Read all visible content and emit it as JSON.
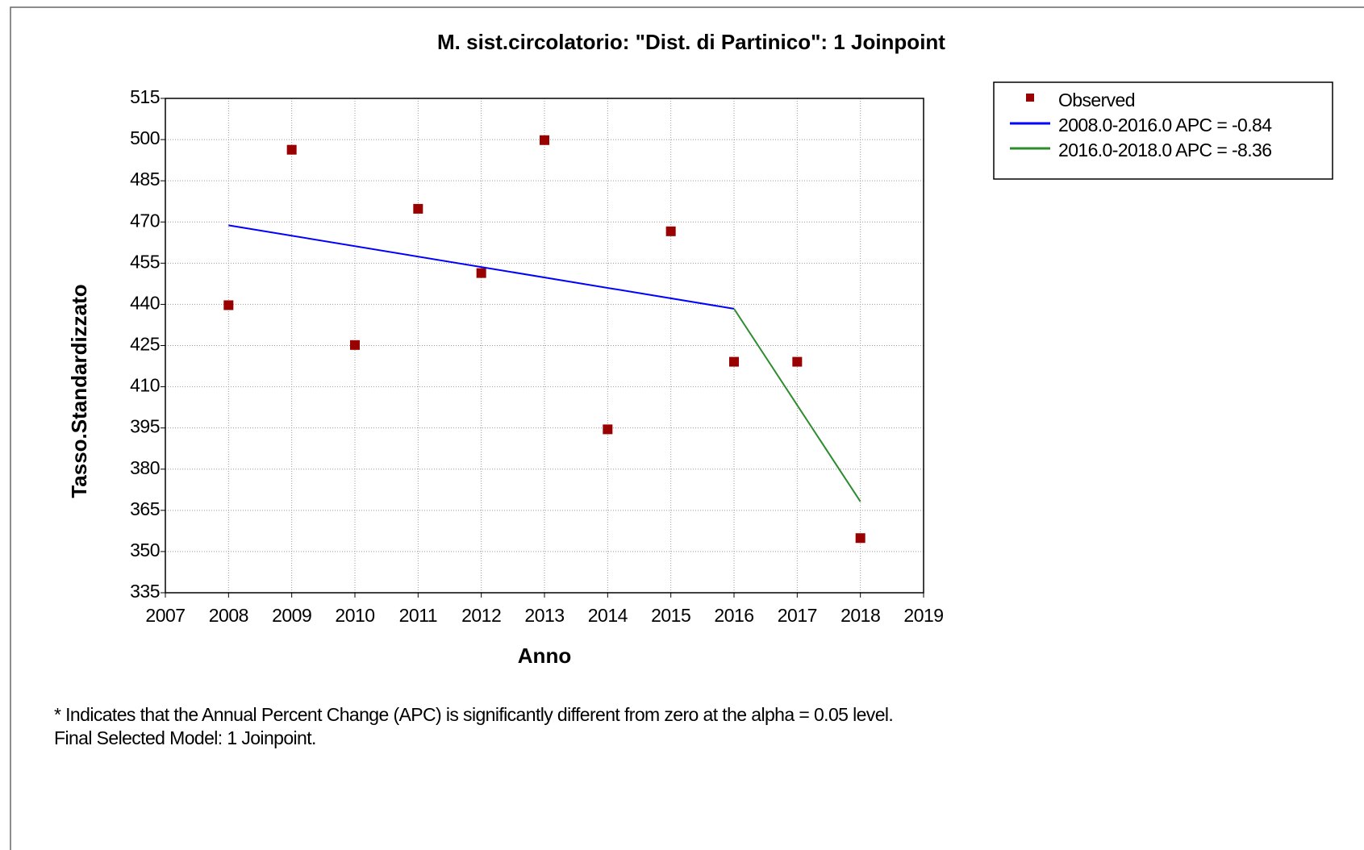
{
  "chart_data": {
    "type": "scatter",
    "title": "M. sist.circolatorio: \"Dist. di Partinico\": 1 Joinpoint",
    "x_label": "Anno",
    "y_label": "Tasso.Standardizzato",
    "xlim": [
      2007,
      2019
    ],
    "xticks": [
      2007,
      2008,
      2009,
      2010,
      2011,
      2012,
      2013,
      2014,
      2015,
      2016,
      2017,
      2018,
      2019
    ],
    "ylim": [
      335,
      515
    ],
    "yticks": [
      335,
      350,
      365,
      380,
      395,
      410,
      425,
      440,
      455,
      470,
      485,
      500,
      515
    ],
    "grid": true,
    "legend": "outside-right",
    "series": [
      {
        "name": "Observed",
        "type": "scatter",
        "color": "#990000",
        "x": [
          2008,
          2009,
          2010,
          2011,
          2012,
          2013,
          2014,
          2015,
          2016,
          2017,
          2018
        ],
        "values": [
          439.7,
          496.3,
          425.2,
          474.8,
          451.4,
          499.8,
          394.5,
          466.6,
          419.1,
          419.1,
          354.9
        ]
      },
      {
        "name": "2008.0-2016.0 APC  = -0.84",
        "type": "line",
        "color": "#0000ff",
        "x": [
          2008,
          2016
        ],
        "values": [
          468.8,
          438.4
        ]
      },
      {
        "name": "2016.0-2018.0 APC  = -8.36",
        "type": "line",
        "color": "#2e8b2e",
        "x": [
          2016,
          2018
        ],
        "values": [
          438.4,
          368.2
        ]
      }
    ],
    "notes": [
      "* Indicates that the Annual Percent Change (APC) is significantly different from zero at the alpha = 0.05 level.",
      "Final Selected Model: 1 Joinpoint."
    ]
  }
}
